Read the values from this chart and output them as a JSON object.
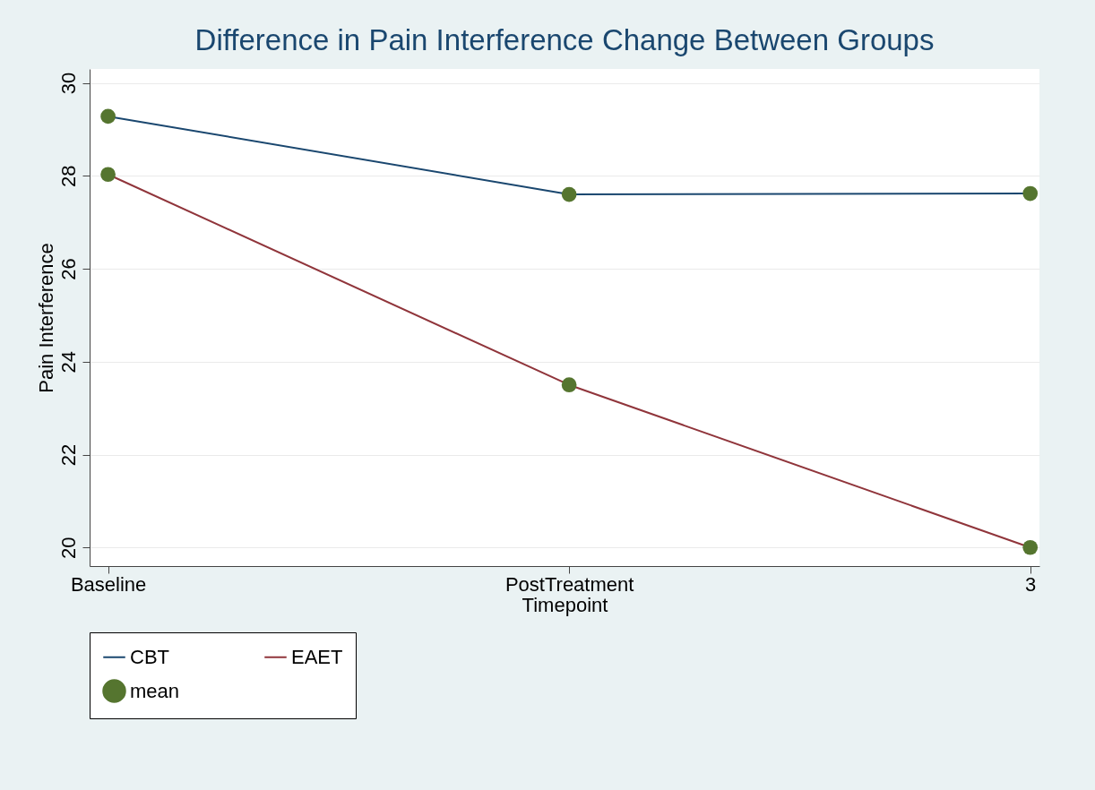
{
  "chart_data": {
    "type": "line",
    "title": "Difference in Pain Interference Change Between Groups",
    "xlabel": "Timepoint",
    "ylabel": "Pain Interference",
    "categories": [
      "Baseline",
      "PostTreatment",
      "3"
    ],
    "series": [
      {
        "name": "CBT",
        "color": "#1a476f",
        "values": [
          29.28,
          27.6,
          27.62
        ]
      },
      {
        "name": "EAET",
        "color": "#90353b",
        "values": [
          28.03,
          23.5,
          20.0
        ]
      },
      {
        "name": "mean",
        "type": "scatter",
        "marker": "circle",
        "color": "#55752f",
        "x": [
          "Baseline",
          "PostTreatment",
          "3",
          "Baseline",
          "PostTreatment",
          "3"
        ],
        "values": [
          29.28,
          27.6,
          27.62,
          28.03,
          23.5,
          20.0
        ]
      }
    ],
    "ylim": [
      19.6,
      30.3
    ],
    "yticks": [
      20,
      22,
      24,
      26,
      28,
      30
    ],
    "grid": "y",
    "legend": "bottom"
  }
}
